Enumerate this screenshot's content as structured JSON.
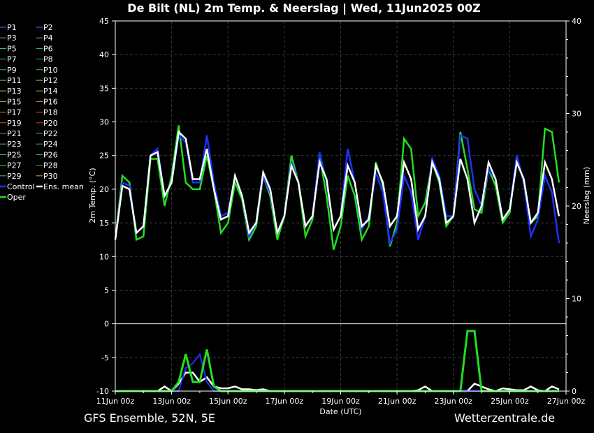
{
  "chart_data": {
    "type": "line",
    "title": "De Bilt  (NL)  2m Temp. & Neerslag | Wed, 11Jun2025 00Z",
    "xlabel": "Date (UTC)",
    "ylabel_left": "2m Temp. (°C)",
    "ylabel_right": "Neerslag (mm)",
    "x_ticks": [
      "11Jun 00z",
      "13Jun 00z",
      "15Jun 00z",
      "17Jun 00z",
      "19Jun 00z",
      "21Jun 00z",
      "23Jun 00z",
      "25Jun 00z",
      "27Jun 00z"
    ],
    "y_ticks_left": [
      "45",
      "40",
      "35",
      "30",
      "25",
      "20",
      "15",
      "10",
      "5",
      "0",
      "-5",
      "-10"
    ],
    "y_ticks_right": [
      "40",
      "30",
      "20",
      "10",
      "0"
    ],
    "ylim_left": [
      -10,
      45
    ],
    "ylim_right": [
      0,
      40
    ],
    "x_step_hours": 6,
    "grid": true,
    "legend_position": "left",
    "legend": [
      {
        "name": "P1",
        "color": "#6060ff"
      },
      {
        "name": "P2",
        "color": "#3a7bff"
      },
      {
        "name": "P3",
        "color": "#6ab0d8"
      },
      {
        "name": "P4",
        "color": "#5ab8d8"
      },
      {
        "name": "P5",
        "color": "#40c8c8"
      },
      {
        "name": "P6",
        "color": "#30c0b0"
      },
      {
        "name": "P7",
        "color": "#30c090"
      },
      {
        "name": "P8",
        "color": "#28b878"
      },
      {
        "name": "P9",
        "color": "#30c060"
      },
      {
        "name": "P10",
        "color": "#40d040"
      },
      {
        "name": "P11",
        "color": "#b8d040"
      },
      {
        "name": "P12",
        "color": "#d8d040"
      },
      {
        "name": "P13",
        "color": "#d8c040"
      },
      {
        "name": "P14",
        "color": "#d8a840"
      },
      {
        "name": "P15",
        "color": "#d89848"
      },
      {
        "name": "P16",
        "color": "#d08848"
      },
      {
        "name": "P17",
        "color": "#d87838"
      },
      {
        "name": "P18",
        "color": "#d06030"
      },
      {
        "name": "P19",
        "color": "#d05038"
      },
      {
        "name": "P20",
        "color": "#c84030"
      },
      {
        "name": "P21",
        "color": "#5a88d0"
      },
      {
        "name": "P22",
        "color": "#4898d8"
      },
      {
        "name": "P23",
        "color": "#48b0d8"
      },
      {
        "name": "P24",
        "color": "#40a8c0"
      },
      {
        "name": "P25",
        "color": "#38c0c0"
      },
      {
        "name": "P26",
        "color": "#30c8a0"
      },
      {
        "name": "P27",
        "color": "#38c870"
      },
      {
        "name": "P28",
        "color": "#30b858"
      },
      {
        "name": "P29",
        "color": "#60d030"
      },
      {
        "name": "P30",
        "color": "#c8c030"
      },
      {
        "name": "Control",
        "color": "#2030ff"
      },
      {
        "name": "Ens. mean",
        "color": "#ffffff"
      },
      {
        "name": "Oper",
        "color": "#20e020"
      }
    ],
    "series_temp": {
      "Ens. mean": [
        12.5,
        20.5,
        20,
        13.5,
        14.5,
        25,
        25.5,
        19,
        21,
        28.5,
        27.5,
        21.5,
        21.5,
        26,
        20,
        15.5,
        16,
        22,
        19,
        13.5,
        15,
        22.5,
        20,
        13.5,
        16,
        23.5,
        21,
        14.5,
        16,
        24,
        21.5,
        14,
        16,
        23.5,
        21,
        14.5,
        15.5,
        23.5,
        21,
        14.5,
        16,
        24,
        21.5,
        14,
        16,
        24,
        21.5,
        15,
        16,
        24.5,
        21.5,
        15,
        17.5,
        24,
        21.5,
        15.5,
        17,
        24,
        21.5,
        15,
        16.5,
        24,
        21.5,
        16
      ],
      "Control": [
        12.5,
        21,
        20.5,
        13.5,
        14.5,
        25,
        26,
        19,
        21,
        28,
        27,
        21,
        21,
        28,
        21,
        16,
        16.5,
        22,
        19,
        13,
        15,
        22,
        19.5,
        13.5,
        16,
        24,
        21,
        14.5,
        16,
        25.5,
        21,
        14,
        16,
        26,
        21,
        14,
        16,
        22.5,
        19.5,
        12,
        14,
        22,
        19.5,
        12.5,
        16,
        24.5,
        22,
        16,
        16,
        28,
        27.5,
        20,
        17.5,
        23,
        21.5,
        15.5,
        17,
        25,
        21,
        13,
        15.5,
        22,
        19.5,
        12
      ],
      "Oper": [
        12.5,
        22,
        21,
        12.5,
        13,
        24.5,
        24.5,
        17.5,
        22,
        29.5,
        21,
        20,
        20,
        25,
        20,
        13.5,
        15,
        21,
        18.5,
        12.5,
        14.5,
        22,
        19,
        12.5,
        16,
        25,
        21,
        13,
        15.5,
        25,
        19,
        11,
        14.5,
        22,
        19,
        12.5,
        14.5,
        24,
        20.5,
        11.5,
        15,
        27.5,
        26,
        16,
        18,
        24,
        21,
        14.5,
        16,
        28.5,
        23,
        17,
        16.5,
        23,
        20.5,
        15,
        16.5,
        25,
        21,
        15,
        16,
        29,
        28.5,
        21
      ]
    },
    "series_precip_mm": {
      "Ens. mean": [
        0,
        0,
        0,
        0,
        0,
        0,
        0,
        0.5,
        0,
        0.8,
        2,
        2,
        1,
        1.5,
        0.5,
        0.3,
        0.3,
        0.5,
        0.2,
        0.2,
        0.1,
        0.2,
        0,
        0,
        0,
        0,
        0,
        0,
        0,
        0,
        0,
        0,
        0,
        0,
        0,
        0,
        0,
        0,
        0,
        0,
        0,
        0,
        0,
        0.1,
        0.5,
        0,
        0,
        0,
        0,
        0,
        0,
        0.8,
        0.5,
        0.2,
        0,
        0.3,
        0.2,
        0.1,
        0.1,
        0.5,
        0.1,
        0,
        0.5,
        0.2
      ],
      "Control": [
        0,
        0,
        0,
        0,
        0,
        0,
        0,
        0,
        0,
        0,
        2.5,
        3,
        4,
        1,
        0,
        0,
        0,
        0,
        0,
        0,
        0,
        0,
        0,
        0,
        0,
        0,
        0,
        0,
        0,
        0,
        0,
        0,
        0,
        0,
        0,
        0,
        0,
        0,
        0,
        0,
        0,
        0,
        0,
        0,
        0,
        0,
        0,
        0,
        0,
        0,
        0,
        0,
        0,
        0,
        0,
        0,
        0,
        0,
        0,
        0,
        0,
        0,
        0,
        0
      ],
      "Oper": [
        0,
        0,
        0,
        0,
        0,
        0,
        0,
        0,
        0,
        1,
        4,
        1,
        1,
        4.5,
        0.5,
        0,
        0,
        0,
        0,
        0,
        0,
        0,
        0,
        0,
        0,
        0,
        0,
        0,
        0,
        0,
        0,
        0,
        0,
        0,
        0,
        0,
        0,
        0,
        0,
        0,
        0,
        0,
        0,
        0,
        0,
        0,
        0,
        0,
        0,
        0,
        6.5,
        6.5,
        0,
        0,
        0,
        0,
        0,
        0,
        0,
        0,
        0,
        0,
        0,
        0
      ]
    }
  },
  "footer": {
    "left": "GFS Ensemble, 52N, 5E",
    "right": "Wetterzentrale.de"
  }
}
